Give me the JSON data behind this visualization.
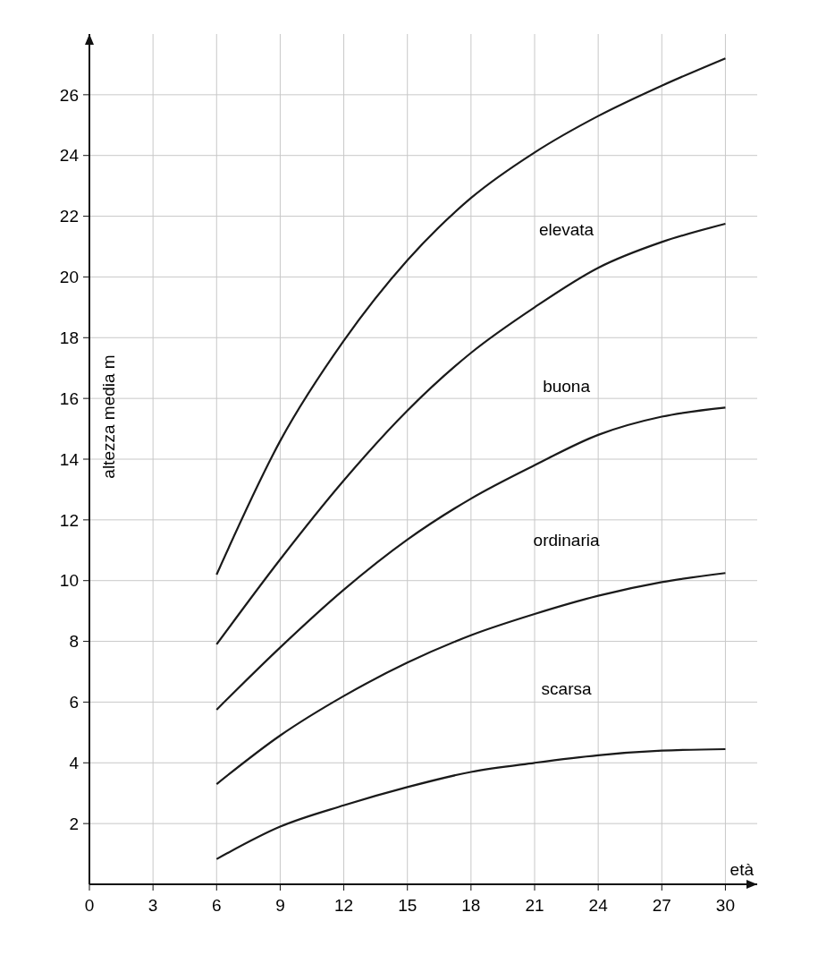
{
  "chart_data": {
    "type": "line",
    "xlabel": "età",
    "ylabel": "altezza media m",
    "x": [
      6,
      9,
      12,
      15,
      18,
      21,
      24,
      27,
      30
    ],
    "series": [
      {
        "color": "#1a1a1a",
        "values": [
          10.2,
          14.6,
          17.9,
          20.55,
          22.6,
          24.1,
          25.3,
          26.3,
          27.2
        ]
      },
      {
        "color": "#1a1a1a",
        "values": [
          7.9,
          10.7,
          13.3,
          15.6,
          17.5,
          19.0,
          20.3,
          21.15,
          21.75
        ]
      },
      {
        "color": "#1a1a1a",
        "values": [
          5.75,
          7.8,
          9.7,
          11.35,
          12.7,
          13.8,
          14.8,
          15.4,
          15.7
        ]
      },
      {
        "color": "#1a1a1a",
        "values": [
          3.3,
          4.9,
          6.2,
          7.3,
          8.2,
          8.9,
          9.5,
          9.95,
          10.25
        ]
      },
      {
        "color": "#1a1a1a",
        "values": [
          0.83,
          1.9,
          2.6,
          3.2,
          3.7,
          4.0,
          4.25,
          4.4,
          4.45
        ]
      }
    ],
    "annotations": [
      "elevata",
      "buona",
      "ordinaria",
      "scarsa"
    ],
    "xlim": [
      0,
      31.5
    ],
    "ylim": [
      0,
      28
    ],
    "xticks": [
      0,
      3,
      6,
      9,
      12,
      15,
      18,
      21,
      24,
      27,
      30
    ],
    "yticks": [
      2,
      4,
      6,
      8,
      10,
      12,
      14,
      16,
      18,
      20,
      22,
      24,
      26
    ],
    "grid": true,
    "marker": "none",
    "line_style": "solid"
  }
}
